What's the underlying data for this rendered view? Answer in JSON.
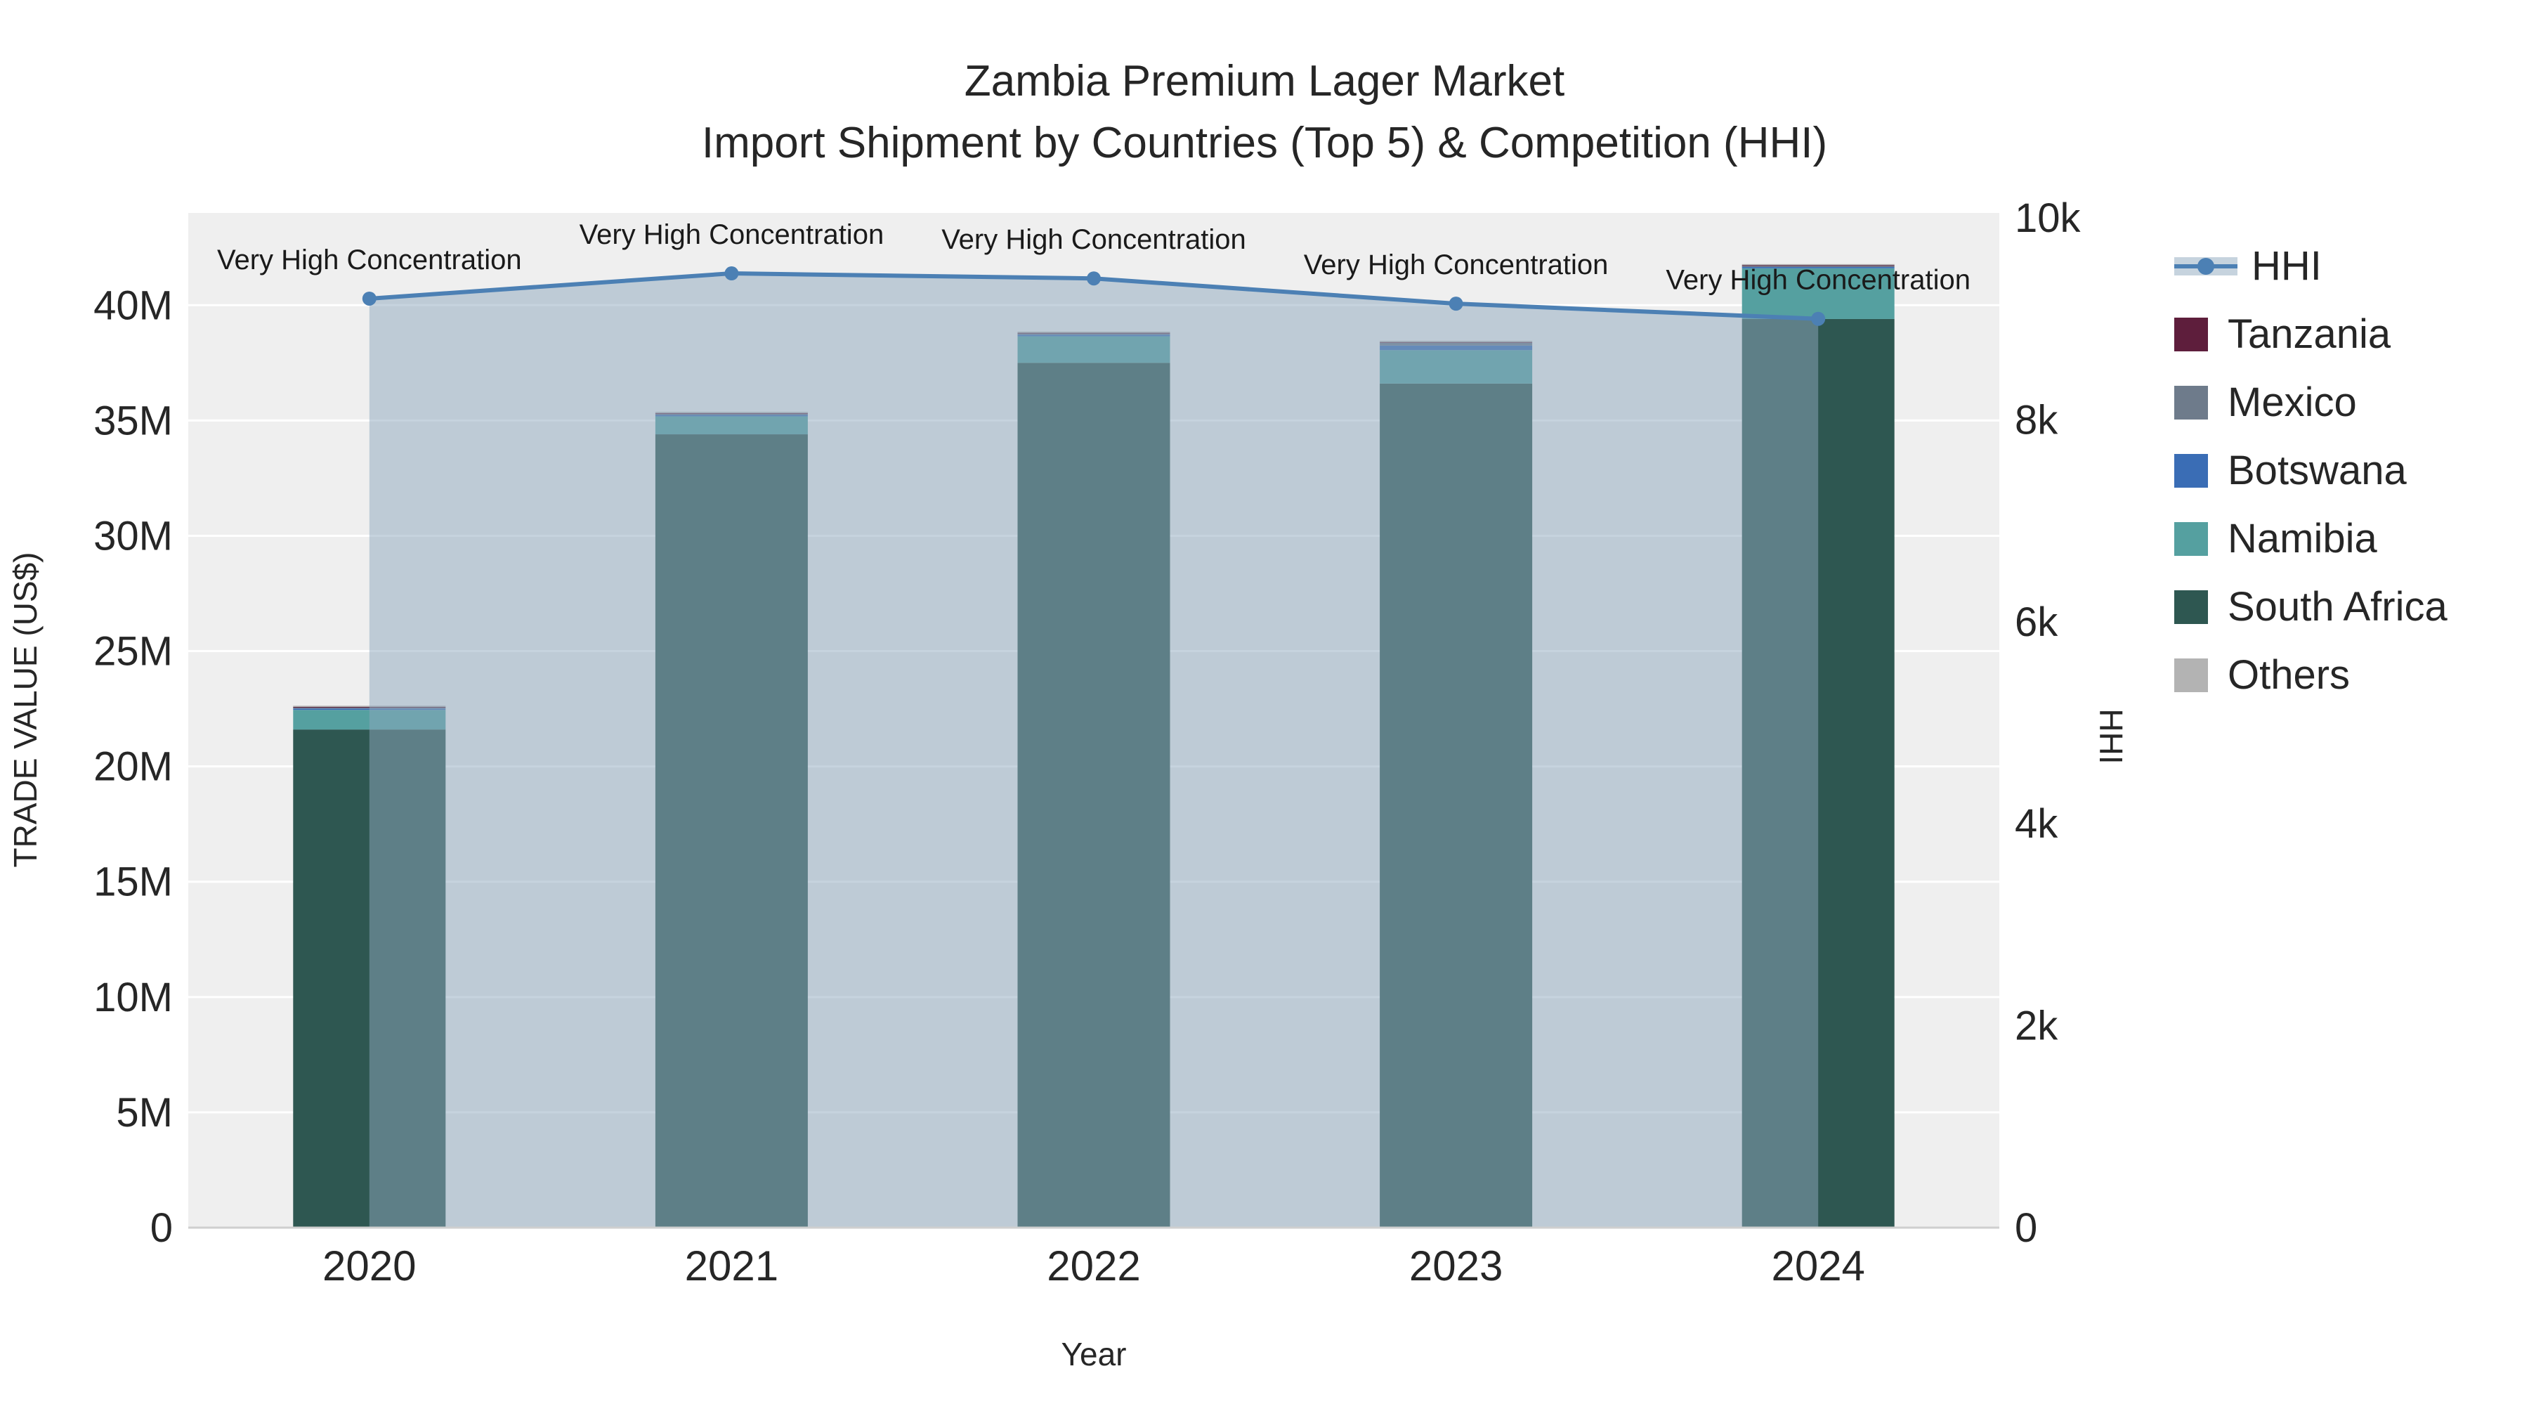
{
  "chart_data": {
    "type": "combo-stacked-bar-line",
    "title": "Zambia Premium Lager Market",
    "subtitle": "Import Shipment by Countries (Top 5) & Competition (HHI)",
    "xlabel": "Year",
    "ylabel_left": "TRADE VALUE (US$)",
    "ylabel_right": "HHI",
    "plot_background": "#efefef",
    "grid_color": "#ffffff",
    "axis_line_color": "#cfcfcf",
    "text_color": "#262626",
    "categories": [
      "2020",
      "2021",
      "2022",
      "2023",
      "2024"
    ],
    "y_left_axis": {
      "units": "millions US$",
      "tick_labels": [
        "0",
        "5M",
        "10M",
        "15M",
        "20M",
        "25M",
        "30M",
        "35M",
        "40M"
      ],
      "tick_values": [
        0,
        5,
        10,
        15,
        20,
        25,
        30,
        35,
        40
      ],
      "max": 44
    },
    "y_right_axis": {
      "units": "HHI index",
      "tick_labels": [
        "0",
        "2k",
        "4k",
        "6k",
        "8k",
        "10k"
      ],
      "tick_values": [
        0,
        2000,
        4000,
        6000,
        8000,
        10000
      ],
      "max": 10050
    },
    "bar_series": [
      {
        "name": "South Africa",
        "color": "#2e5751",
        "values": [
          21.6,
          34.4,
          37.5,
          36.6,
          39.4
        ]
      },
      {
        "name": "Namibia",
        "color": "#55a0a0",
        "values": [
          0.85,
          0.78,
          1.15,
          1.45,
          2.2
        ]
      },
      {
        "name": "Botswana",
        "color": "#3a6db5",
        "values": [
          0.06,
          0.06,
          0.07,
          0.2,
          0.06
        ]
      },
      {
        "name": "Mexico",
        "color": "#6e7b8b",
        "values": [
          0.04,
          0.05,
          0.05,
          0.12,
          0.04
        ]
      },
      {
        "name": "Tanzania",
        "color": "#5e1e3c",
        "values": [
          0.03,
          0.03,
          0.03,
          0.03,
          0.03
        ]
      },
      {
        "name": "Others",
        "color": "#b3b3b3",
        "values": [
          0.05,
          0.05,
          0.05,
          0.05,
          0.05
        ]
      }
    ],
    "line_series": {
      "name": "HHI",
      "color": "#4c80b4",
      "fill_color": "rgba(142,167,189,0.5)",
      "values": [
        9200,
        9450,
        9400,
        9150,
        9000
      ]
    },
    "annotations": [
      {
        "x": "2020",
        "text": "Very High Concentration"
      },
      {
        "x": "2021",
        "text": "Very High Concentration"
      },
      {
        "x": "2022",
        "text": "Very High Concentration"
      },
      {
        "x": "2023",
        "text": "Very High Concentration"
      },
      {
        "x": "2024",
        "text": "Very High Concentration"
      }
    ],
    "legend": {
      "position": "top-right",
      "items": [
        {
          "label": "HHI",
          "type": "line",
          "color": "#4c80b4"
        },
        {
          "label": "Tanzania",
          "type": "square",
          "color": "#5e1e3c"
        },
        {
          "label": "Mexico",
          "type": "square",
          "color": "#6e7b8b"
        },
        {
          "label": "Botswana",
          "type": "square",
          "color": "#3a6db5"
        },
        {
          "label": "Namibia",
          "type": "square",
          "color": "#55a0a0"
        },
        {
          "label": "South Africa",
          "type": "square",
          "color": "#2e5751"
        },
        {
          "label": "Others",
          "type": "square",
          "color": "#b3b3b3"
        }
      ]
    }
  }
}
